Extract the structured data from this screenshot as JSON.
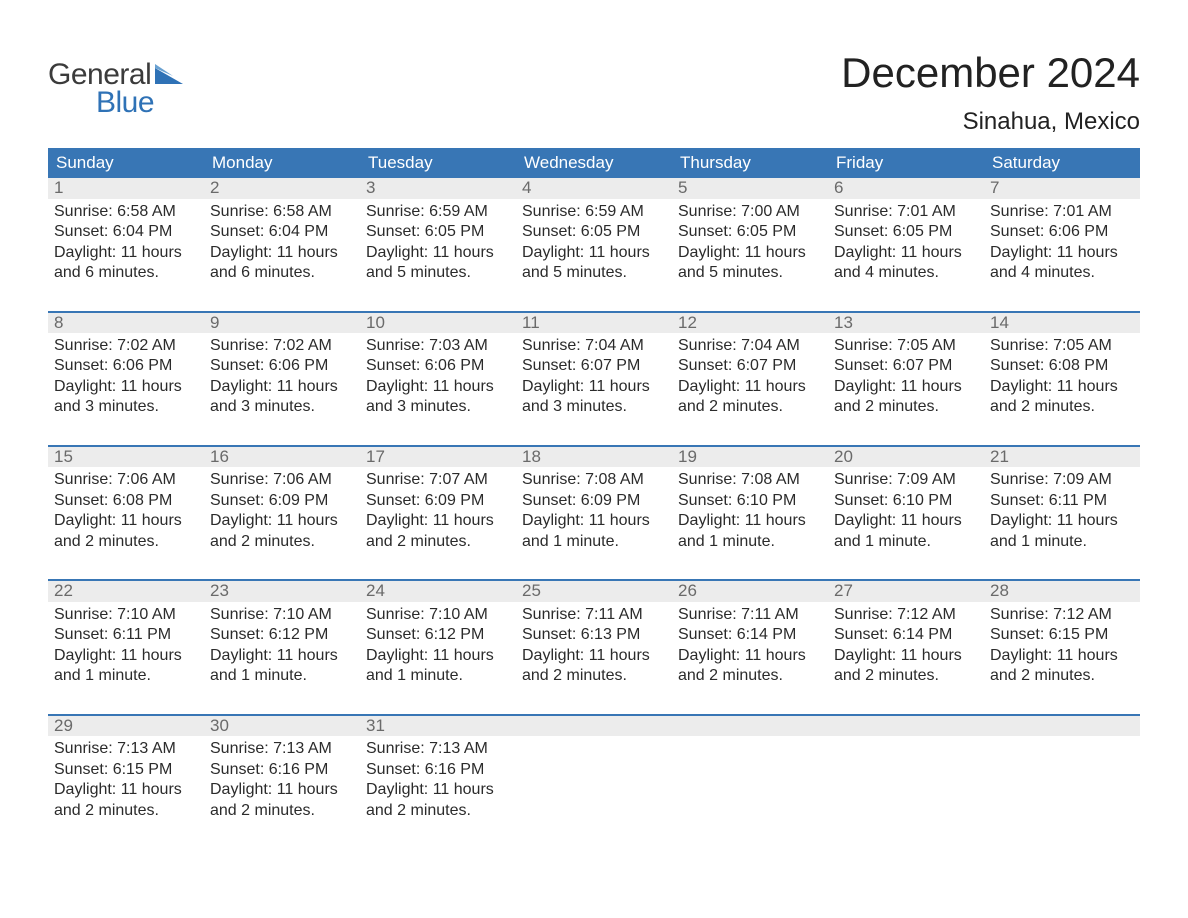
{
  "brand": {
    "word1": "General",
    "word2": "Blue",
    "text_color": "#3b3b3b",
    "accent_color": "#2f72b6",
    "flag_color": "#2f72b6"
  },
  "title": {
    "month_year": "December 2024",
    "location": "Sinahua, Mexico",
    "title_fontsize": 42,
    "location_fontsize": 24,
    "text_color": "#222222"
  },
  "calendar_style": {
    "header_bg": "#3876b5",
    "header_text_color": "#ffffff",
    "header_fontsize": 17,
    "daynum_bg": "#ececec",
    "daynum_text_color": "#6a6a6a",
    "daynum_fontsize": 17,
    "body_bg": "#ffffff",
    "body_text_color": "#2b2b2b",
    "body_fontsize": 16,
    "separator_color": "#3876b5",
    "columns": 7
  },
  "day_headers": [
    "Sunday",
    "Monday",
    "Tuesday",
    "Wednesday",
    "Thursday",
    "Friday",
    "Saturday"
  ],
  "weeks": [
    {
      "days": [
        {
          "n": "1",
          "l1": "Sunrise: 6:58 AM",
          "l2": "Sunset: 6:04 PM",
          "l3": "Daylight: 11 hours",
          "l4": "and 6 minutes."
        },
        {
          "n": "2",
          "l1": "Sunrise: 6:58 AM",
          "l2": "Sunset: 6:04 PM",
          "l3": "Daylight: 11 hours",
          "l4": "and 6 minutes."
        },
        {
          "n": "3",
          "l1": "Sunrise: 6:59 AM",
          "l2": "Sunset: 6:05 PM",
          "l3": "Daylight: 11 hours",
          "l4": "and 5 minutes."
        },
        {
          "n": "4",
          "l1": "Sunrise: 6:59 AM",
          "l2": "Sunset: 6:05 PM",
          "l3": "Daylight: 11 hours",
          "l4": "and 5 minutes."
        },
        {
          "n": "5",
          "l1": "Sunrise: 7:00 AM",
          "l2": "Sunset: 6:05 PM",
          "l3": "Daylight: 11 hours",
          "l4": "and 5 minutes."
        },
        {
          "n": "6",
          "l1": "Sunrise: 7:01 AM",
          "l2": "Sunset: 6:05 PM",
          "l3": "Daylight: 11 hours",
          "l4": "and 4 minutes."
        },
        {
          "n": "7",
          "l1": "Sunrise: 7:01 AM",
          "l2": "Sunset: 6:06 PM",
          "l3": "Daylight: 11 hours",
          "l4": "and 4 minutes."
        }
      ]
    },
    {
      "days": [
        {
          "n": "8",
          "l1": "Sunrise: 7:02 AM",
          "l2": "Sunset: 6:06 PM",
          "l3": "Daylight: 11 hours",
          "l4": "and 3 minutes."
        },
        {
          "n": "9",
          "l1": "Sunrise: 7:02 AM",
          "l2": "Sunset: 6:06 PM",
          "l3": "Daylight: 11 hours",
          "l4": "and 3 minutes."
        },
        {
          "n": "10",
          "l1": "Sunrise: 7:03 AM",
          "l2": "Sunset: 6:06 PM",
          "l3": "Daylight: 11 hours",
          "l4": "and 3 minutes."
        },
        {
          "n": "11",
          "l1": "Sunrise: 7:04 AM",
          "l2": "Sunset: 6:07 PM",
          "l3": "Daylight: 11 hours",
          "l4": "and 3 minutes."
        },
        {
          "n": "12",
          "l1": "Sunrise: 7:04 AM",
          "l2": "Sunset: 6:07 PM",
          "l3": "Daylight: 11 hours",
          "l4": "and 2 minutes."
        },
        {
          "n": "13",
          "l1": "Sunrise: 7:05 AM",
          "l2": "Sunset: 6:07 PM",
          "l3": "Daylight: 11 hours",
          "l4": "and 2 minutes."
        },
        {
          "n": "14",
          "l1": "Sunrise: 7:05 AM",
          "l2": "Sunset: 6:08 PM",
          "l3": "Daylight: 11 hours",
          "l4": "and 2 minutes."
        }
      ]
    },
    {
      "days": [
        {
          "n": "15",
          "l1": "Sunrise: 7:06 AM",
          "l2": "Sunset: 6:08 PM",
          "l3": "Daylight: 11 hours",
          "l4": "and 2 minutes."
        },
        {
          "n": "16",
          "l1": "Sunrise: 7:06 AM",
          "l2": "Sunset: 6:09 PM",
          "l3": "Daylight: 11 hours",
          "l4": "and 2 minutes."
        },
        {
          "n": "17",
          "l1": "Sunrise: 7:07 AM",
          "l2": "Sunset: 6:09 PM",
          "l3": "Daylight: 11 hours",
          "l4": "and 2 minutes."
        },
        {
          "n": "18",
          "l1": "Sunrise: 7:08 AM",
          "l2": "Sunset: 6:09 PM",
          "l3": "Daylight: 11 hours",
          "l4": "and 1 minute."
        },
        {
          "n": "19",
          "l1": "Sunrise: 7:08 AM",
          "l2": "Sunset: 6:10 PM",
          "l3": "Daylight: 11 hours",
          "l4": "and 1 minute."
        },
        {
          "n": "20",
          "l1": "Sunrise: 7:09 AM",
          "l2": "Sunset: 6:10 PM",
          "l3": "Daylight: 11 hours",
          "l4": "and 1 minute."
        },
        {
          "n": "21",
          "l1": "Sunrise: 7:09 AM",
          "l2": "Sunset: 6:11 PM",
          "l3": "Daylight: 11 hours",
          "l4": "and 1 minute."
        }
      ]
    },
    {
      "days": [
        {
          "n": "22",
          "l1": "Sunrise: 7:10 AM",
          "l2": "Sunset: 6:11 PM",
          "l3": "Daylight: 11 hours",
          "l4": "and 1 minute."
        },
        {
          "n": "23",
          "l1": "Sunrise: 7:10 AM",
          "l2": "Sunset: 6:12 PM",
          "l3": "Daylight: 11 hours",
          "l4": "and 1 minute."
        },
        {
          "n": "24",
          "l1": "Sunrise: 7:10 AM",
          "l2": "Sunset: 6:12 PM",
          "l3": "Daylight: 11 hours",
          "l4": "and 1 minute."
        },
        {
          "n": "25",
          "l1": "Sunrise: 7:11 AM",
          "l2": "Sunset: 6:13 PM",
          "l3": "Daylight: 11 hours",
          "l4": "and 2 minutes."
        },
        {
          "n": "26",
          "l1": "Sunrise: 7:11 AM",
          "l2": "Sunset: 6:14 PM",
          "l3": "Daylight: 11 hours",
          "l4": "and 2 minutes."
        },
        {
          "n": "27",
          "l1": "Sunrise: 7:12 AM",
          "l2": "Sunset: 6:14 PM",
          "l3": "Daylight: 11 hours",
          "l4": "and 2 minutes."
        },
        {
          "n": "28",
          "l1": "Sunrise: 7:12 AM",
          "l2": "Sunset: 6:15 PM",
          "l3": "Daylight: 11 hours",
          "l4": "and 2 minutes."
        }
      ]
    },
    {
      "days": [
        {
          "n": "29",
          "l1": "Sunrise: 7:13 AM",
          "l2": "Sunset: 6:15 PM",
          "l3": "Daylight: 11 hours",
          "l4": "and 2 minutes."
        },
        {
          "n": "30",
          "l1": "Sunrise: 7:13 AM",
          "l2": "Sunset: 6:16 PM",
          "l3": "Daylight: 11 hours",
          "l4": "and 2 minutes."
        },
        {
          "n": "31",
          "l1": "Sunrise: 7:13 AM",
          "l2": "Sunset: 6:16 PM",
          "l3": "Daylight: 11 hours",
          "l4": "and 2 minutes."
        },
        {
          "n": "",
          "l1": "",
          "l2": "",
          "l3": "",
          "l4": ""
        },
        {
          "n": "",
          "l1": "",
          "l2": "",
          "l3": "",
          "l4": ""
        },
        {
          "n": "",
          "l1": "",
          "l2": "",
          "l3": "",
          "l4": ""
        },
        {
          "n": "",
          "l1": "",
          "l2": "",
          "l3": "",
          "l4": ""
        }
      ]
    }
  ]
}
